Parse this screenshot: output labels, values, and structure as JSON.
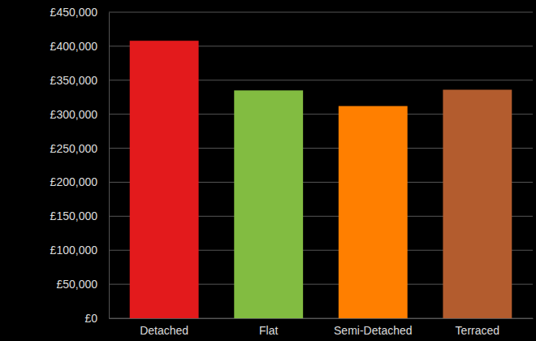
{
  "chart_data": {
    "type": "bar",
    "categories": [
      "Detached",
      "Flat",
      "Semi-Detached",
      "Terraced"
    ],
    "values": [
      408000,
      335000,
      312000,
      336000
    ],
    "colors": [
      "#e31a1c",
      "#82bc41",
      "#ff7f00",
      "#b35c2e"
    ],
    "ylim": [
      0,
      450000
    ],
    "yticks": [
      {
        "value": 0,
        "label": "£0"
      },
      {
        "value": 50000,
        "label": "£50,000"
      },
      {
        "value": 100000,
        "label": "£100,000"
      },
      {
        "value": 150000,
        "label": "£150,000"
      },
      {
        "value": 200000,
        "label": "£200,000"
      },
      {
        "value": 250000,
        "label": "£250,000"
      },
      {
        "value": 300000,
        "label": "£300,000"
      },
      {
        "value": 350000,
        "label": "£350,000"
      },
      {
        "value": 400000,
        "label": "£400,000"
      },
      {
        "value": 450000,
        "label": "£450,000"
      }
    ],
    "grid": true
  }
}
